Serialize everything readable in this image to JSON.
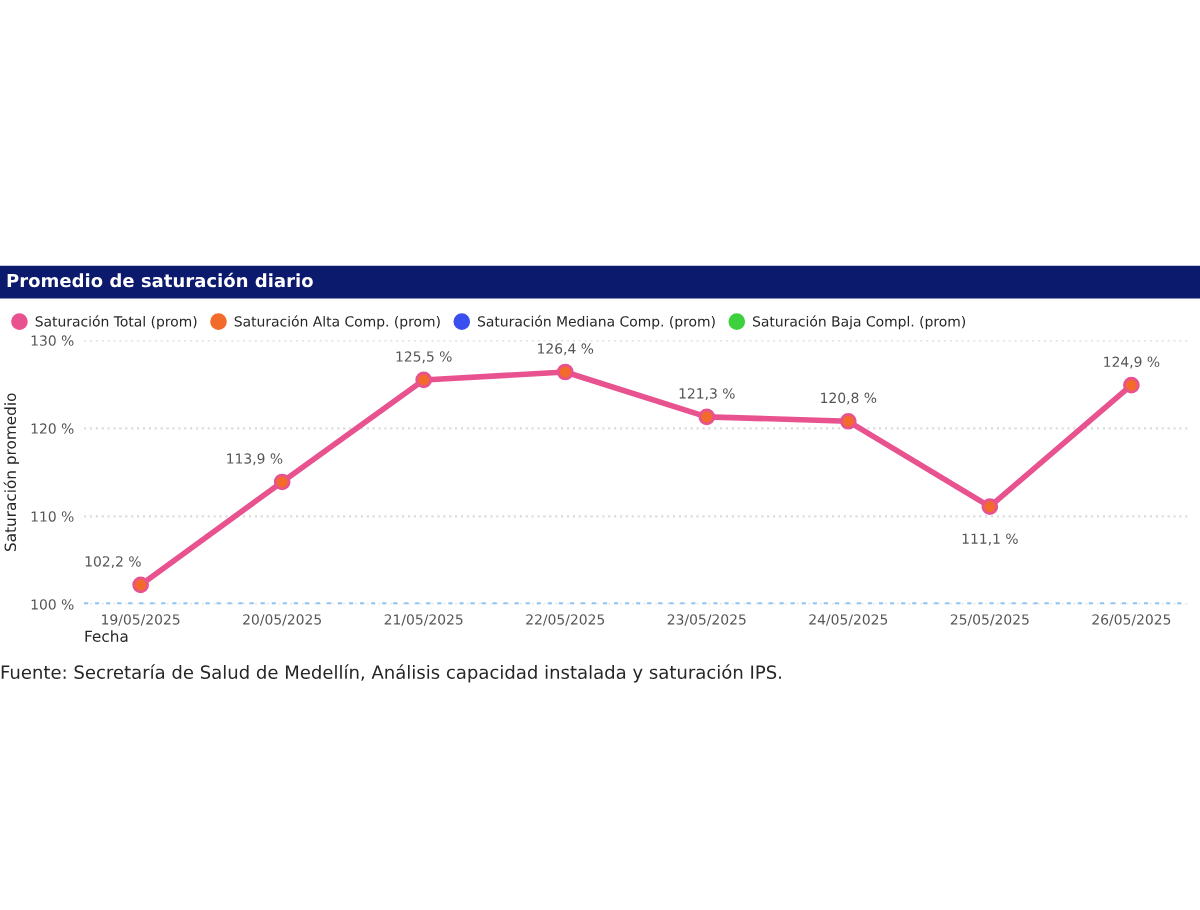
{
  "chart_data": {
    "type": "line",
    "title": "Promedio de saturación diario",
    "xlabel": "Fecha",
    "ylabel": "Saturación promedio",
    "categories": [
      "19/05/2025",
      "20/05/2025",
      "21/05/2025",
      "22/05/2025",
      "23/05/2025",
      "24/05/2025",
      "25/05/2025",
      "26/05/2025"
    ],
    "series": [
      {
        "name": "Saturación Total (prom)",
        "color": "#e8528f",
        "values": [
          102.2,
          113.9,
          125.5,
          126.4,
          121.3,
          120.8,
          111.1,
          124.9
        ],
        "value_labels": [
          "102,2 %",
          "113,9 %",
          "125,5 %",
          "126,4 %",
          "121,3 %",
          "120,8 %",
          "111,1 %",
          "124,9 %"
        ]
      },
      {
        "name": "Saturación Alta Comp. (prom)",
        "color": "#f26b2a",
        "values": [
          null,
          null,
          null,
          null,
          null,
          null,
          null,
          null
        ]
      },
      {
        "name": "Saturación Mediana Comp. (prom)",
        "color": "#3b4ef0",
        "values": [
          null,
          null,
          null,
          null,
          null,
          null,
          null,
          null
        ]
      },
      {
        "name": "Saturación Baja Compl. (prom)",
        "color": "#3dd13d",
        "values": [
          null,
          null,
          null,
          null,
          null,
          null,
          null,
          null
        ]
      }
    ],
    "ylim": [
      100,
      130
    ],
    "yticks": [
      {
        "value": 100,
        "label": "100 %"
      },
      {
        "value": 110,
        "label": "110 %"
      },
      {
        "value": 120,
        "label": "120 %"
      },
      {
        "value": 130,
        "label": "130 %"
      }
    ],
    "ref_lines": [
      {
        "axis": "y",
        "value": 100,
        "label": null,
        "color": "#8ec5f5",
        "line_style": "dotted"
      }
    ],
    "grid": "y",
    "legend": "top left",
    "marker": "circle",
    "line_style": "solid",
    "annotations": [
      "Fuente: Secretaría de Salud de Medellín, Análisis capacidad instalada y saturación IPS."
    ]
  }
}
